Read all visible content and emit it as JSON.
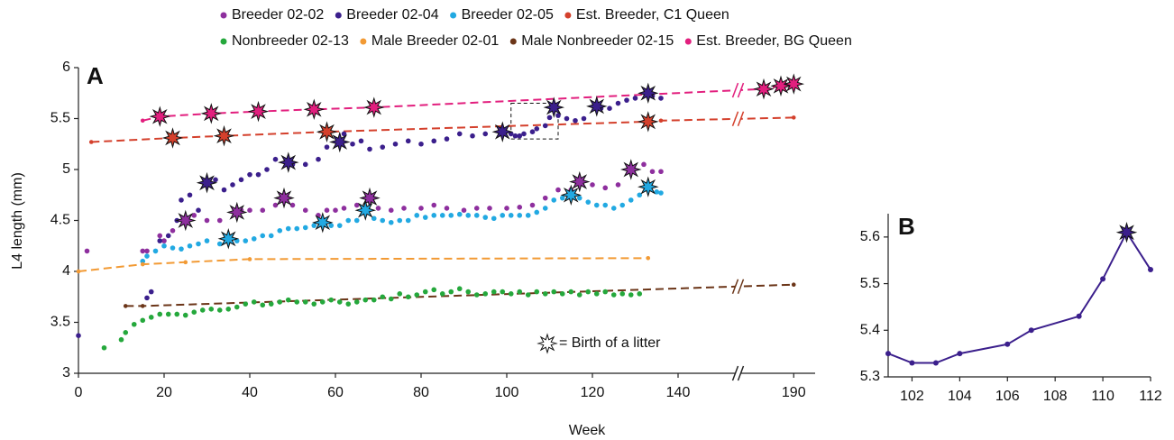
{
  "chart_data": [
    {
      "type": "scatter",
      "panel_label": "A",
      "y_label": "L4 length (mm)",
      "x_label": "Week",
      "annotation": "= Birth of a litter",
      "xlim": [
        0,
        195
      ],
      "x_break": [
        154,
        177
      ],
      "xticks": [
        0,
        20,
        40,
        60,
        80,
        100,
        120,
        140,
        190
      ],
      "ylim": [
        3,
        6
      ],
      "yticks": [
        3,
        3.5,
        4,
        4.5,
        5,
        5.5,
        6
      ],
      "series": [
        {
          "name": "Breeder 02-02",
          "color": "#8e2f9e",
          "x": [
            2,
            15,
            16,
            19,
            20,
            22,
            25,
            27,
            30,
            33,
            37,
            38,
            40,
            43,
            46,
            48,
            50,
            53,
            56,
            58,
            60,
            62,
            65,
            68,
            70,
            73,
            76,
            80,
            83,
            86,
            90,
            93,
            96,
            100,
            103,
            106,
            109,
            112,
            115,
            117,
            120,
            123,
            126,
            129,
            132,
            134,
            136
          ],
          "values": [
            4.2,
            4.2,
            4.2,
            4.35,
            4.3,
            4.4,
            4.5,
            4.55,
            4.5,
            4.5,
            4.58,
            4.6,
            4.6,
            4.6,
            4.65,
            4.72,
            4.65,
            4.6,
            4.55,
            4.6,
            4.6,
            4.62,
            4.65,
            4.72,
            4.62,
            4.6,
            4.62,
            4.62,
            4.65,
            4.62,
            4.6,
            4.62,
            4.62,
            4.62,
            4.63,
            4.65,
            4.72,
            4.8,
            4.8,
            4.88,
            4.85,
            4.82,
            4.85,
            5.0,
            5.05,
            4.98,
            4.98
          ],
          "births": [
            25,
            37,
            48,
            68,
            117,
            129
          ]
        },
        {
          "name": "Breeder 02-04",
          "color": "#3b1f8c",
          "x": [
            0,
            16,
            17,
            19,
            21,
            23,
            24,
            26,
            28,
            30,
            32,
            34,
            36,
            38,
            40,
            42,
            44,
            46,
            49,
            50,
            53,
            56,
            58,
            61,
            62,
            64,
            66,
            68,
            71,
            74,
            77,
            80,
            83,
            86,
            89,
            92,
            95,
            99,
            101,
            102,
            103,
            104,
            106,
            107,
            109,
            110,
            111,
            112,
            114,
            116,
            118,
            121,
            122,
            124,
            126,
            128,
            130,
            133,
            134,
            136
          ],
          "values": [
            3.37,
            3.74,
            3.8,
            4.3,
            4.35,
            4.5,
            4.7,
            4.75,
            4.6,
            4.87,
            4.9,
            4.8,
            4.85,
            4.9,
            4.95,
            4.95,
            5.0,
            5.1,
            5.07,
            5.05,
            5.05,
            5.1,
            5.22,
            5.27,
            5.35,
            5.25,
            5.28,
            5.2,
            5.22,
            5.25,
            5.28,
            5.25,
            5.28,
            5.3,
            5.35,
            5.33,
            5.35,
            5.37,
            5.35,
            5.33,
            5.33,
            5.35,
            5.37,
            5.4,
            5.43,
            5.51,
            5.61,
            5.53,
            5.5,
            5.48,
            5.5,
            5.62,
            5.6,
            5.6,
            5.65,
            5.68,
            5.7,
            5.75,
            5.72,
            5.7
          ],
          "births": [
            30,
            49,
            61,
            99,
            111,
            121,
            133
          ]
        },
        {
          "name": "Breeder 02-05",
          "color": "#22a9e2",
          "x": [
            15,
            16,
            18,
            20,
            22,
            24,
            26,
            28,
            30,
            33,
            35,
            37,
            39,
            41,
            43,
            45,
            47,
            49,
            51,
            53,
            55,
            57,
            59,
            61,
            63,
            65,
            67,
            69,
            71,
            73,
            75,
            77,
            79,
            81,
            83,
            85,
            87,
            89,
            91,
            93,
            95,
            97,
            99,
            101,
            103,
            105,
            107,
            109,
            111,
            113,
            115,
            117,
            119,
            121,
            123,
            125,
            127,
            129,
            131,
            133,
            135,
            136
          ],
          "values": [
            4.1,
            4.15,
            4.2,
            4.25,
            4.23,
            4.22,
            4.25,
            4.27,
            4.3,
            4.27,
            4.32,
            4.3,
            4.3,
            4.32,
            4.35,
            4.35,
            4.4,
            4.42,
            4.42,
            4.43,
            4.45,
            4.48,
            4.45,
            4.45,
            4.5,
            4.5,
            4.6,
            4.52,
            4.5,
            4.48,
            4.5,
            4.5,
            4.55,
            4.53,
            4.55,
            4.55,
            4.55,
            4.56,
            4.55,
            4.55,
            4.53,
            4.52,
            4.55,
            4.55,
            4.55,
            4.55,
            4.58,
            4.62,
            4.7,
            4.72,
            4.75,
            4.72,
            4.68,
            4.65,
            4.65,
            4.62,
            4.65,
            4.7,
            4.75,
            4.83,
            4.78,
            4.77
          ],
          "births": [
            35,
            57,
            67,
            115,
            133
          ]
        },
        {
          "name": "Est. Breeder, C1 Queen",
          "color": "#d4402c",
          "connect": "dashed",
          "x": [
            3,
            22,
            34,
            58,
            133,
            136,
            190
          ],
          "values": [
            5.27,
            5.31,
            5.33,
            5.37,
            5.47,
            5.48,
            5.51
          ],
          "births": [
            22,
            34,
            58,
            133
          ]
        },
        {
          "name": "Nonbreeder 02-13",
          "color": "#25a83c",
          "x": [
            6,
            10,
            11,
            13,
            15,
            17,
            19,
            21,
            23,
            25,
            27,
            29,
            31,
            33,
            35,
            37,
            39,
            41,
            43,
            45,
            47,
            49,
            51,
            53,
            55,
            57,
            59,
            61,
            63,
            65,
            67,
            69,
            71,
            73,
            75,
            77,
            79,
            81,
            83,
            85,
            87,
            89,
            91,
            93,
            95,
            97,
            99,
            101,
            103,
            105,
            107,
            109,
            111,
            113,
            115,
            117,
            119,
            121,
            123,
            125,
            127,
            129,
            131
          ],
          "values": [
            3.25,
            3.33,
            3.4,
            3.48,
            3.52,
            3.55,
            3.58,
            3.58,
            3.58,
            3.57,
            3.6,
            3.62,
            3.63,
            3.62,
            3.63,
            3.65,
            3.68,
            3.7,
            3.67,
            3.68,
            3.7,
            3.72,
            3.7,
            3.7,
            3.68,
            3.7,
            3.72,
            3.7,
            3.68,
            3.7,
            3.72,
            3.72,
            3.75,
            3.73,
            3.78,
            3.75,
            3.77,
            3.8,
            3.82,
            3.78,
            3.8,
            3.83,
            3.8,
            3.77,
            3.78,
            3.8,
            3.8,
            3.78,
            3.8,
            3.77,
            3.8,
            3.78,
            3.8,
            3.78,
            3.8,
            3.77,
            3.8,
            3.78,
            3.8,
            3.77,
            3.78,
            3.77,
            3.78
          ]
        },
        {
          "name": "Male Breeder 02-01",
          "color": "#f29a34",
          "connect": "dashed",
          "x": [
            0,
            15,
            25,
            40,
            133
          ],
          "values": [
            4,
            4.07,
            4.09,
            4.12,
            4.13
          ]
        },
        {
          "name": "Male Nonbreeder 02-15",
          "color": "#6b3518",
          "connect": "dashed",
          "x": [
            11,
            15,
            190
          ],
          "values": [
            3.66,
            3.66,
            3.87
          ]
        },
        {
          "name": "Est. Breeder, BG Queen",
          "color": "#e21f7e",
          "connect": "dashed",
          "x": [
            15,
            19,
            31,
            42,
            55,
            69,
            183,
            187,
            190
          ],
          "values": [
            5.48,
            5.52,
            5.55,
            5.57,
            5.59,
            5.61,
            5.79,
            5.82,
            5.84
          ],
          "births": [
            19,
            31,
            42,
            55,
            69,
            183,
            187,
            190
          ]
        }
      ]
    },
    {
      "type": "line",
      "panel_label": "B",
      "color": "#3b1f8c",
      "xlim": [
        101,
        112
      ],
      "xticks": [
        102,
        104,
        106,
        108,
        110,
        112
      ],
      "ylim": [
        5.3,
        5.65
      ],
      "yticks": [
        5.3,
        5.4,
        5.5,
        5.6
      ],
      "x": [
        101,
        102,
        103,
        104,
        106,
        107,
        109,
        110,
        111,
        112
      ],
      "values": [
        5.35,
        5.33,
        5.33,
        5.35,
        5.37,
        5.4,
        5.43,
        5.51,
        5.61,
        5.53
      ],
      "births": [
        111
      ]
    }
  ]
}
